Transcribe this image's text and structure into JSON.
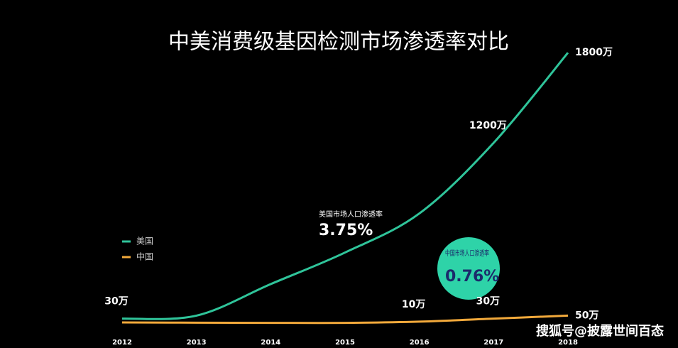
{
  "chart_data": {
    "type": "line",
    "title": "中美消费级基因检测市场渗透率对比",
    "x": [
      2012,
      2013,
      2014,
      2015,
      2016,
      2017,
      2018
    ],
    "xlim": [
      2012,
      2018
    ],
    "xticks": [
      2012,
      2013,
      2014,
      2015,
      2016,
      2017,
      2018
    ],
    "ylim": [
      0,
      1900
    ],
    "legend": "left",
    "series": [
      {
        "name": "美国",
        "color": "#2fc49a",
        "values": [
          30,
          50,
          260,
          470,
          730,
          1200,
          1800
        ],
        "value_labels": [
          "30万",
          null,
          null,
          null,
          null,
          "1200万",
          "1800万"
        ]
      },
      {
        "name": "中国",
        "color": "#f2a93b",
        "values": [
          5,
          3,
          2,
          2,
          10,
          30,
          50
        ],
        "value_labels": [
          null,
          null,
          null,
          null,
          "10万",
          "30万",
          "50万"
        ]
      }
    ],
    "annotations": [
      {
        "label": "美国市场人口渗透率",
        "value": "3.75%"
      },
      {
        "label": "中国市场人口渗透率",
        "value": "0.76%"
      }
    ],
    "watermark": "搜狐号@披露世间百态"
  }
}
